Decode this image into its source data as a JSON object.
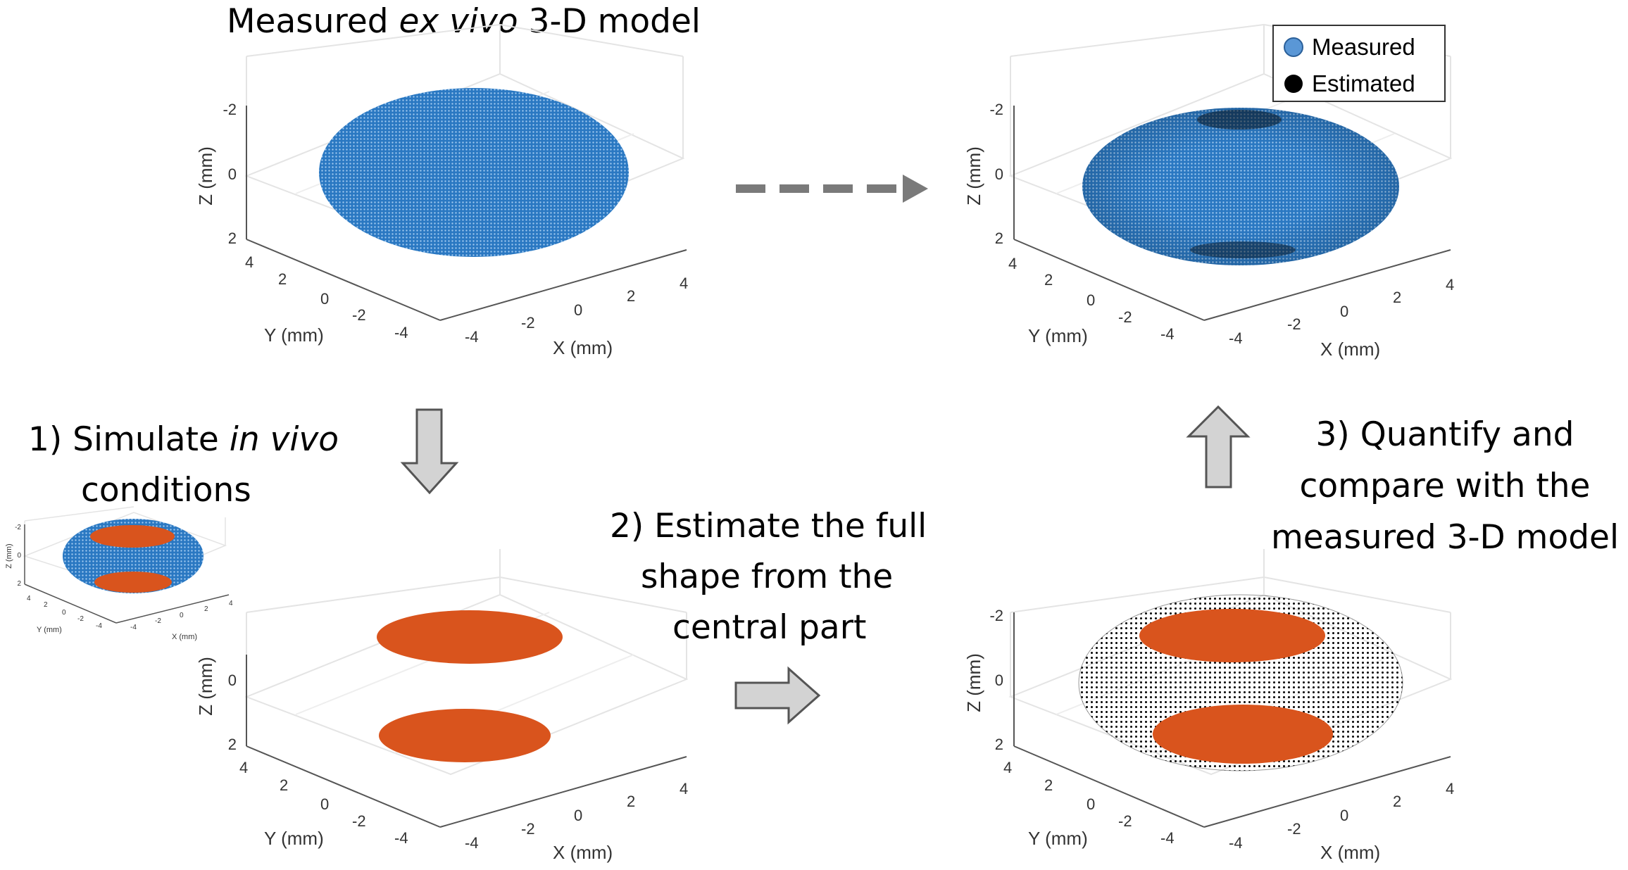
{
  "colors": {
    "measured": "#2a78c2",
    "estimated": "#000000",
    "orange": "#d9541d",
    "arrow_grey": "#7a7a7a",
    "block_arrow_fill": "#d3d3d3",
    "grid": "#e4e4e4",
    "axis": "#555555"
  },
  "captions": {
    "top_title_pre": "Measured ",
    "top_title_italic": "ex vivo",
    "top_title_post": " 3-D model",
    "step1_line1_pre": "1) Simulate ",
    "step1_line1_italic": "in vivo",
    "step1_line2": "conditions",
    "step2_line1": "2) Estimate the full",
    "step2_line2": "shape from the",
    "step2_line3": "central part",
    "step3_line1": "3) Quantify and",
    "step3_line2": "compare with the",
    "step3_line3": "measured 3-D model"
  },
  "legend": {
    "measured_label": "Measured",
    "estimated_label": "Estimated"
  },
  "axes": {
    "z_label": "Z (mm)",
    "y_label": "Y (mm)",
    "x_label": "X (mm)",
    "z_ticks": [
      "-2",
      "0",
      "2"
    ],
    "y_ticks": [
      "4",
      "2",
      "0",
      "-2",
      "-4"
    ],
    "x_ticks": [
      "-4",
      "-2",
      "0",
      "2",
      "4"
    ]
  }
}
